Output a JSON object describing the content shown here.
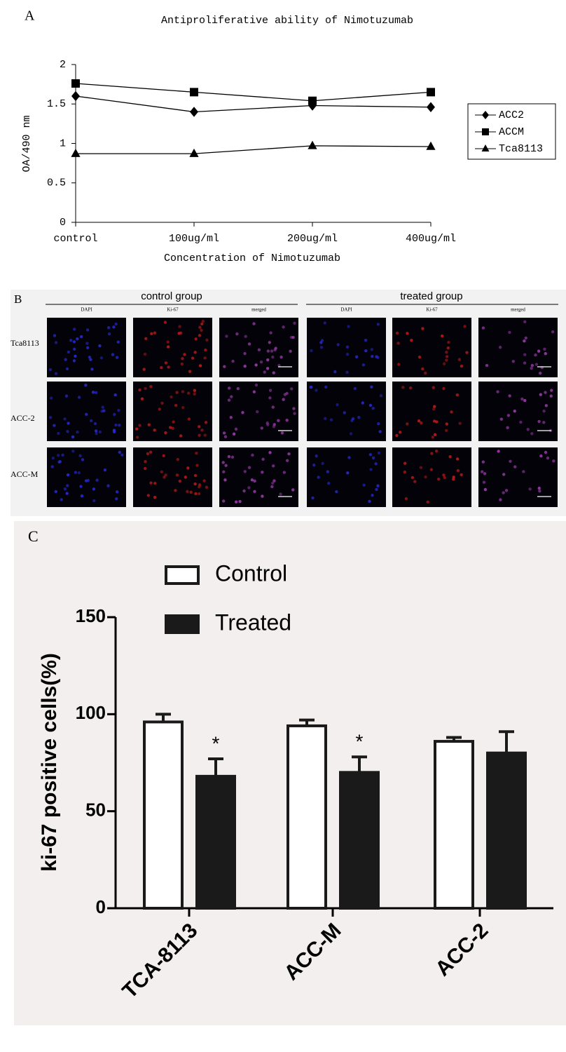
{
  "panel_labels": [
    "A",
    "B",
    "C"
  ],
  "chart_data": [
    {
      "type": "line",
      "title": "Antiproliferative ability of Nimotuzumab",
      "x_label": "Concentration of Nimotuzumab",
      "y_label": "OA/490 nm",
      "categories": [
        "control",
        "100ug/ml",
        "200ug/ml",
        "400ug/ml"
      ],
      "series": [
        {
          "name": "ACC2",
          "color": "#000000",
          "marker": "diamond",
          "values": [
            1.6,
            1.4,
            1.48,
            1.46
          ]
        },
        {
          "name": "ACCM",
          "color": "#000000",
          "marker": "square",
          "values": [
            1.76,
            1.65,
            1.54,
            1.65
          ]
        },
        {
          "name": "Tca8113",
          "color": "#000000",
          "marker": "triangle",
          "values": [
            0.87,
            0.87,
            0.97,
            0.96
          ]
        }
      ],
      "ylim": [
        0,
        2
      ],
      "yticks": [
        0,
        0.5,
        1,
        1.5,
        2
      ],
      "legend": "right"
    },
    {
      "type": "bar",
      "y_label": "ki-67 positive cells(%)",
      "categories": [
        "TCA-8113",
        "ACC-M",
        "ACC-2"
      ],
      "series": [
        {
          "name": "Control",
          "color": "#ffffff",
          "values": [
            96,
            94,
            86
          ],
          "errors": [
            4,
            3,
            2
          ]
        },
        {
          "name": "Treated",
          "color": "#1a1a1a",
          "values": [
            68,
            70,
            80
          ],
          "errors": [
            9,
            8,
            11
          ],
          "significance": [
            "*",
            "*",
            null
          ]
        }
      ],
      "ylim": [
        0,
        150
      ],
      "yticks": [
        0,
        50,
        100,
        150
      ],
      "legend": "top-left"
    }
  ],
  "panel_b": {
    "groups": [
      "control group",
      "treated group"
    ],
    "channels": [
      "DAPI",
      "Ki-67",
      "merged"
    ],
    "rows": [
      "Tca8113",
      "ACC-2",
      "ACC-M"
    ]
  }
}
